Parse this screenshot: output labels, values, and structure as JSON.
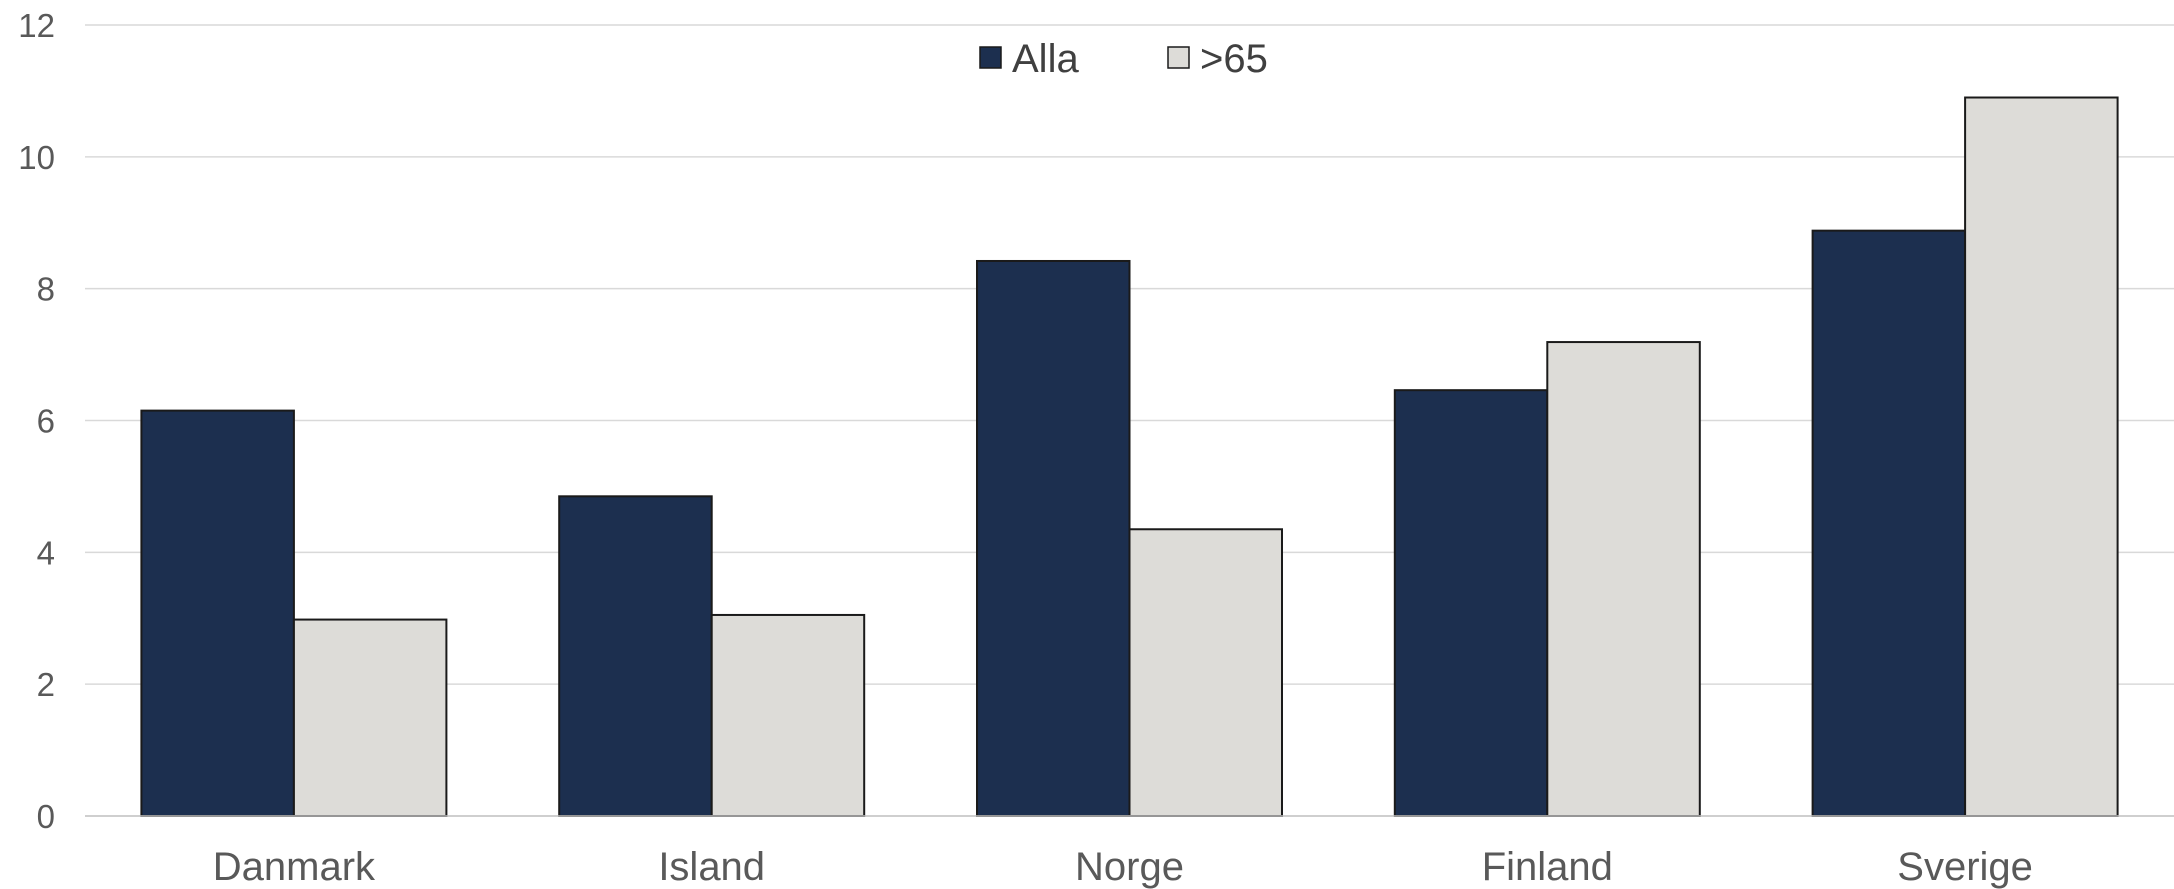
{
  "chart_data": {
    "type": "bar",
    "title": "",
    "xlabel": "",
    "ylabel": "",
    "categories": [
      "Danmark",
      "Island",
      "Norge",
      "Finland",
      "Sverige"
    ],
    "series": [
      {
        "name": "Alla",
        "color": "#1c2f4f",
        "values": [
          6.15,
          4.85,
          8.42,
          6.46,
          8.88
        ]
      },
      {
        "name": ">65",
        "color": "#dddcd8",
        "values": [
          2.98,
          3.05,
          4.35,
          7.19,
          10.9
        ]
      }
    ],
    "ylim": [
      0,
      12
    ],
    "yticks": [
      0,
      2,
      4,
      6,
      8,
      10,
      12
    ],
    "grid": true,
    "legend": "top-center",
    "bar_outline": "#1a1a1a"
  }
}
